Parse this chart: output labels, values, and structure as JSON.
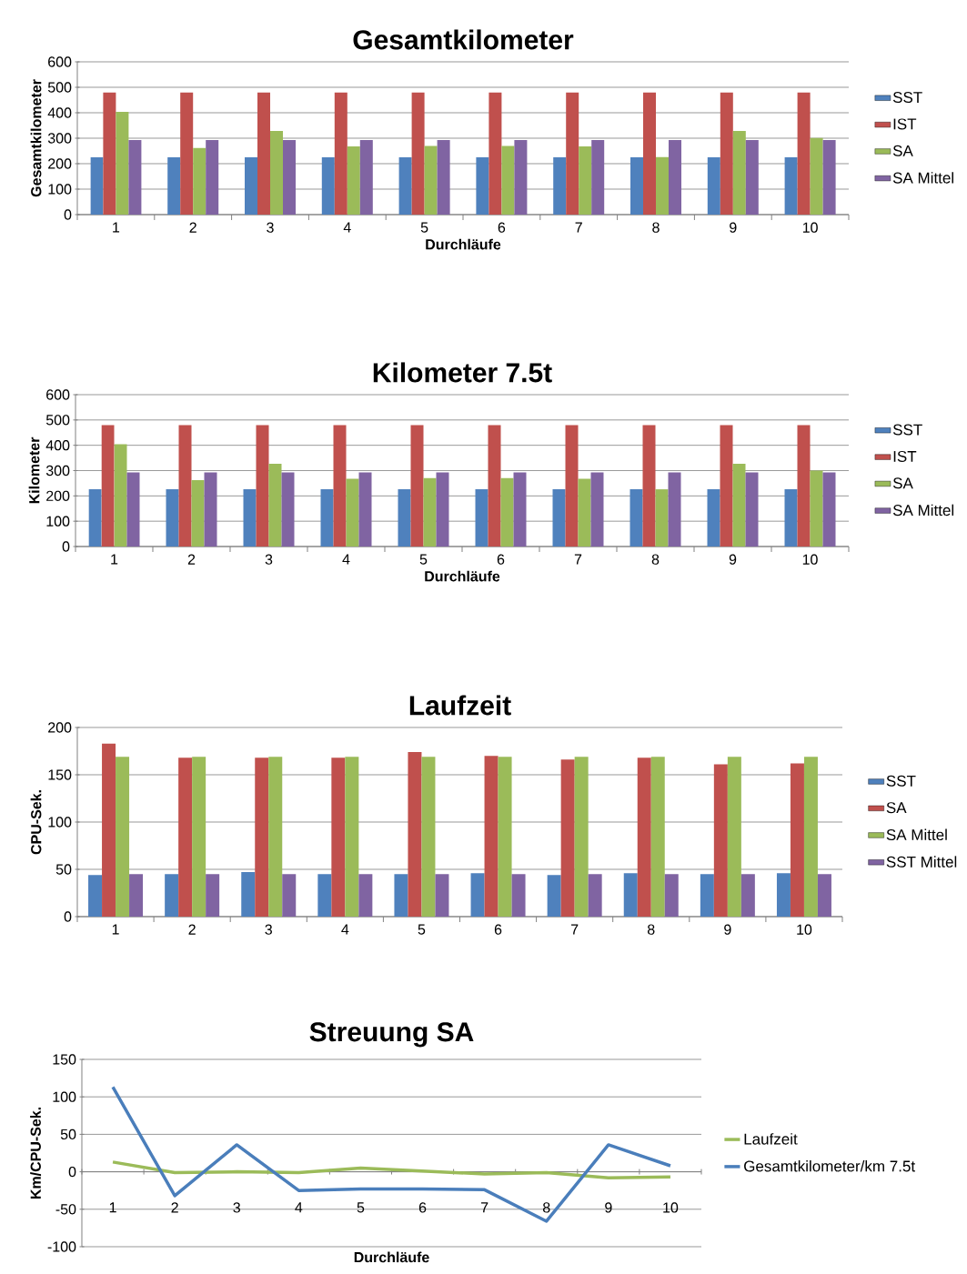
{
  "chart_data": [
    {
      "type": "bar",
      "title": "Gesamtkilometer",
      "xlabel": "Durchläufe",
      "ylabel": "Gesamtkilometer",
      "categories": [
        "1",
        "2",
        "3",
        "4",
        "5",
        "6",
        "7",
        "8",
        "9",
        "10"
      ],
      "series": [
        {
          "name": "SST",
          "color": "#4f81bd",
          "values": [
            226,
            226,
            226,
            226,
            226,
            226,
            226,
            226,
            226,
            226
          ]
        },
        {
          "name": "IST",
          "color": "#c0504d",
          "values": [
            480,
            480,
            480,
            480,
            480,
            480,
            480,
            480,
            480,
            480
          ]
        },
        {
          "name": "SA",
          "color": "#9bbb59",
          "values": [
            404,
            262,
            329,
            268,
            270,
            270,
            268,
            226,
            329,
            301
          ]
        },
        {
          "name": "SA Mittel",
          "color": "#8064a2",
          "values": [
            293,
            293,
            293,
            293,
            293,
            293,
            293,
            293,
            293,
            293
          ]
        }
      ],
      "ylim": [
        0,
        600
      ],
      "yticks": [
        0,
        100,
        200,
        300,
        400,
        500,
        600
      ],
      "grid": "y",
      "legend": "right"
    },
    {
      "type": "bar",
      "title": "Kilometer 7.5t",
      "xlabel": "Durchläufe",
      "ylabel": "Kilometer",
      "categories": [
        "1",
        "2",
        "3",
        "4",
        "5",
        "6",
        "7",
        "8",
        "9",
        "10"
      ],
      "series": [
        {
          "name": "SST",
          "color": "#4f81bd",
          "values": [
            226,
            226,
            226,
            226,
            226,
            226,
            226,
            226,
            226,
            226
          ]
        },
        {
          "name": "IST",
          "color": "#c0504d",
          "values": [
            480,
            480,
            480,
            480,
            480,
            480,
            480,
            480,
            480,
            480
          ]
        },
        {
          "name": "SA",
          "color": "#9bbb59",
          "values": [
            404,
            262,
            327,
            268,
            270,
            270,
            268,
            226,
            327,
            300
          ]
        },
        {
          "name": "SA Mittel",
          "color": "#8064a2",
          "values": [
            293,
            293,
            293,
            293,
            293,
            293,
            293,
            293,
            293,
            293
          ]
        }
      ],
      "ylim": [
        0,
        600
      ],
      "yticks": [
        0,
        100,
        200,
        300,
        400,
        500,
        600
      ],
      "grid": "y",
      "legend": "right"
    },
    {
      "type": "bar",
      "title": "Laufzeit",
      "ylabel": "CPU-Sek.",
      "categories": [
        "1",
        "2",
        "3",
        "4",
        "5",
        "6",
        "7",
        "8",
        "9",
        "10"
      ],
      "series": [
        {
          "name": "SST",
          "color": "#4f81bd",
          "values": [
            44,
            45,
            47,
            45,
            45,
            46,
            44,
            46,
            45,
            46
          ]
        },
        {
          "name": "SA",
          "color": "#c0504d",
          "values": [
            183,
            168,
            168,
            168,
            174,
            170,
            166,
            168,
            161,
            162
          ]
        },
        {
          "name": "SA Mittel",
          "color": "#9bbb59",
          "values": [
            169,
            169,
            169,
            169,
            169,
            169,
            169,
            169,
            169,
            169
          ]
        },
        {
          "name": "SST Mittel",
          "color": "#8064a2",
          "values": [
            45,
            45,
            45,
            45,
            45,
            45,
            45,
            45,
            45,
            45
          ]
        }
      ],
      "ylim": [
        0,
        200
      ],
      "yticks": [
        0,
        50,
        100,
        150,
        200
      ],
      "grid": "y",
      "legend": "right"
    },
    {
      "type": "line",
      "title": "Streuung SA",
      "xlabel": "Durchläufe",
      "ylabel": "Km/CPU-Sek.",
      "categories": [
        "1",
        "2",
        "3",
        "4",
        "5",
        "6",
        "7",
        "8",
        "9",
        "10"
      ],
      "series": [
        {
          "name": "Laufzeit",
          "color": "#9bbb59",
          "values": [
            13,
            -1,
            0,
            -1,
            5,
            1,
            -3,
            -1,
            -8,
            -7
          ]
        },
        {
          "name": "Gesamtkilometer/km 7.5t",
          "color": "#4a7ebb",
          "values": [
            113,
            -32,
            36,
            -25,
            -23,
            -23,
            -24,
            -66,
            36,
            8
          ]
        }
      ],
      "ylim": [
        -100,
        150
      ],
      "yticks": [
        -100,
        -50,
        0,
        50,
        100,
        150
      ],
      "grid": "y",
      "legend": "right",
      "marker": "none"
    }
  ]
}
